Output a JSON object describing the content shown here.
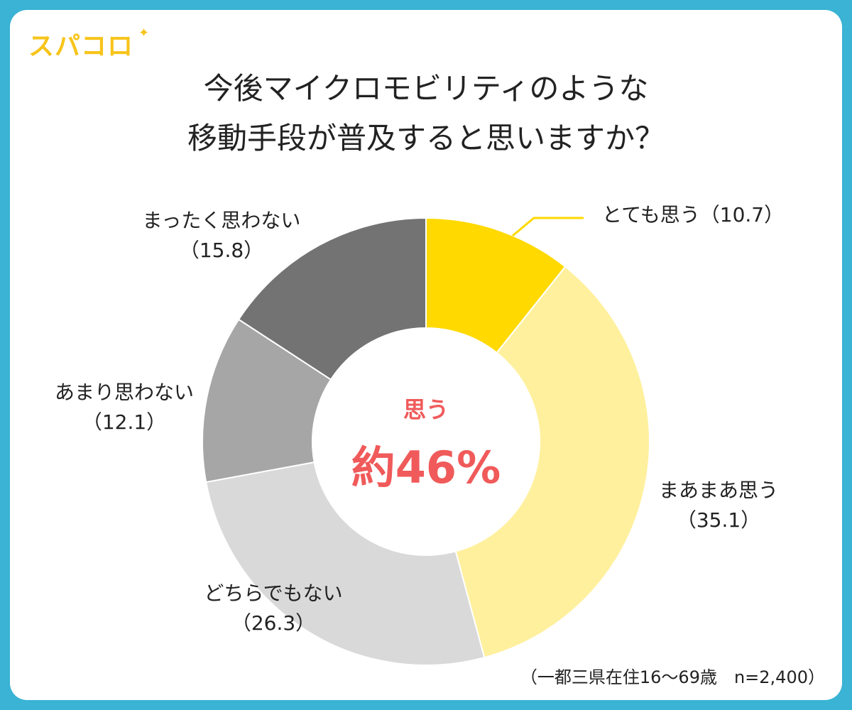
{
  "brand": {
    "logo_text": "スパコロ"
  },
  "center": {
    "label": "思う",
    "value": "約46%"
  },
  "footnote": "（一都三県在住16〜69歳　n=2,400）",
  "colors": {
    "accent": "#f05a5a",
    "frame": "#3ab3d4",
    "slices": [
      "#ffd900",
      "#fff09e",
      "#d9d9d9",
      "#a6a6a6",
      "#737373"
    ]
  },
  "chart_data": {
    "type": "pie",
    "variant": "donut",
    "title": "今後マイクロモビリティのような移動手段が普及すると思いますか？",
    "title_lines": [
      "今後マイクロモビリティのような",
      "移動手段が普及すると思いますか？"
    ],
    "unit": "%",
    "slices": [
      {
        "label": "とても思う",
        "value": 10.7,
        "value_text": "（10.7）"
      },
      {
        "label": "まあまあ思う",
        "value": 35.1,
        "value_text": "（35.1）"
      },
      {
        "label": "どちらでもない",
        "value": 26.3,
        "value_text": "（26.3）"
      },
      {
        "label": "あまり思わない",
        "value": 12.1,
        "value_text": "（12.1）"
      },
      {
        "label": "まったく思わない",
        "value": 15.8,
        "value_text": "（15.8）"
      }
    ]
  }
}
